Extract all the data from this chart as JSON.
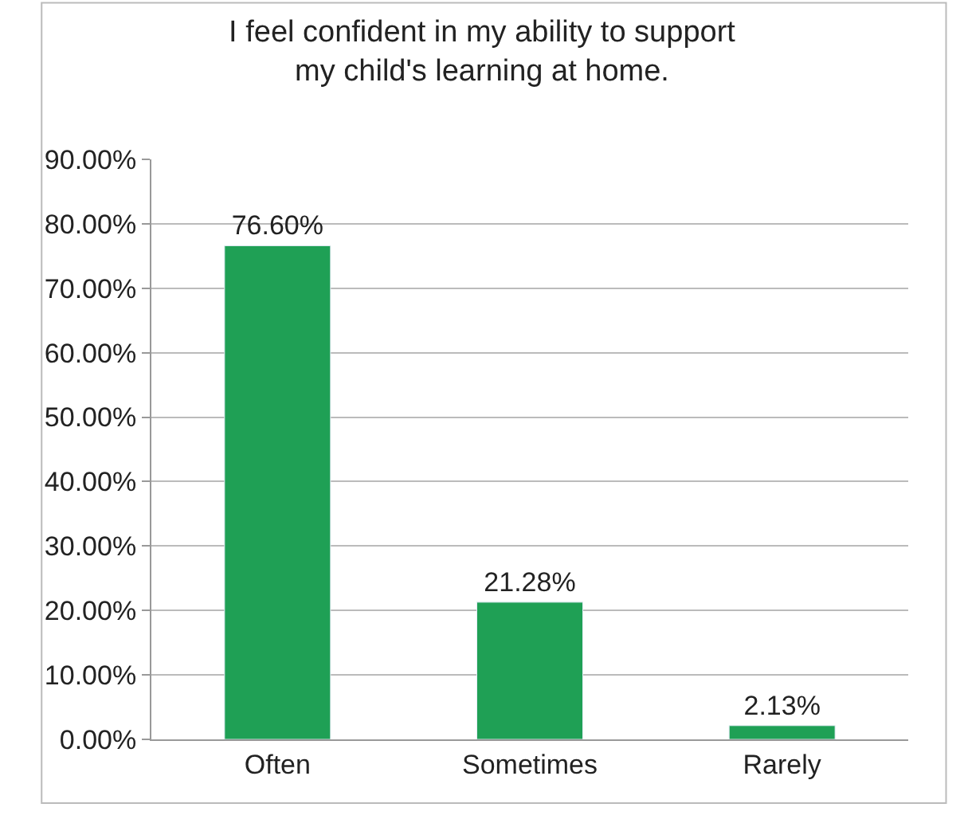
{
  "chart_data": {
    "type": "bar",
    "title": "I feel confident in my ability to support\nmy child's learning at home.",
    "categories": [
      "Often",
      "Sometimes",
      "Rarely"
    ],
    "values": [
      76.6,
      21.28,
      2.13
    ],
    "value_labels": [
      "76.60%",
      "21.28%",
      "2.13%"
    ],
    "color": "#1fa055",
    "ylim": [
      0,
      90
    ],
    "yticks": [
      {
        "value": 0,
        "label": "0.00%"
      },
      {
        "value": 10,
        "label": "10.00%"
      },
      {
        "value": 20,
        "label": "20.00%"
      },
      {
        "value": 30,
        "label": "30.00%"
      },
      {
        "value": 40,
        "label": "40.00%"
      },
      {
        "value": 50,
        "label": "50.00%"
      },
      {
        "value": 60,
        "label": "60.00%"
      },
      {
        "value": 70,
        "label": "70.00%"
      },
      {
        "value": 80,
        "label": "80.00%"
      },
      {
        "value": 90,
        "label": "90.00%"
      }
    ],
    "grid": "y"
  }
}
